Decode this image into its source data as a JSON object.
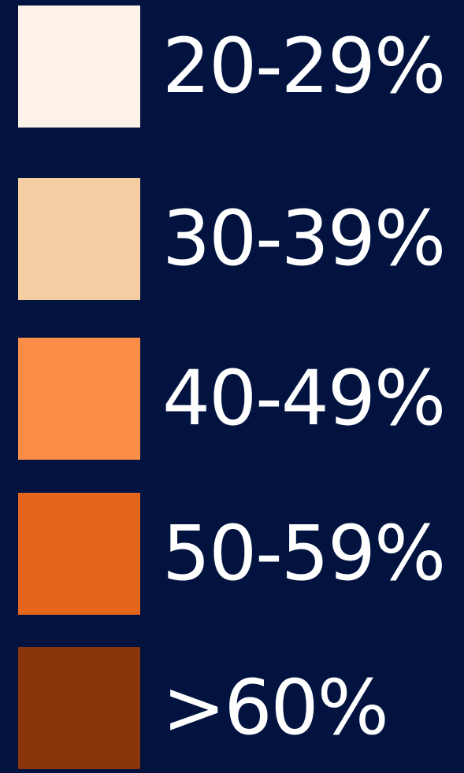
{
  "legend": {
    "items": [
      {
        "label": "20-29%",
        "color": "#fcf2ea"
      },
      {
        "label": "30-39%",
        "color": "#f5cda2"
      },
      {
        "label": "40-49%",
        "color": "#fa8d47"
      },
      {
        "label": "50-59%",
        "color": "#e4661d"
      },
      {
        "label": ">60%",
        "color": "#8a340c"
      }
    ]
  }
}
